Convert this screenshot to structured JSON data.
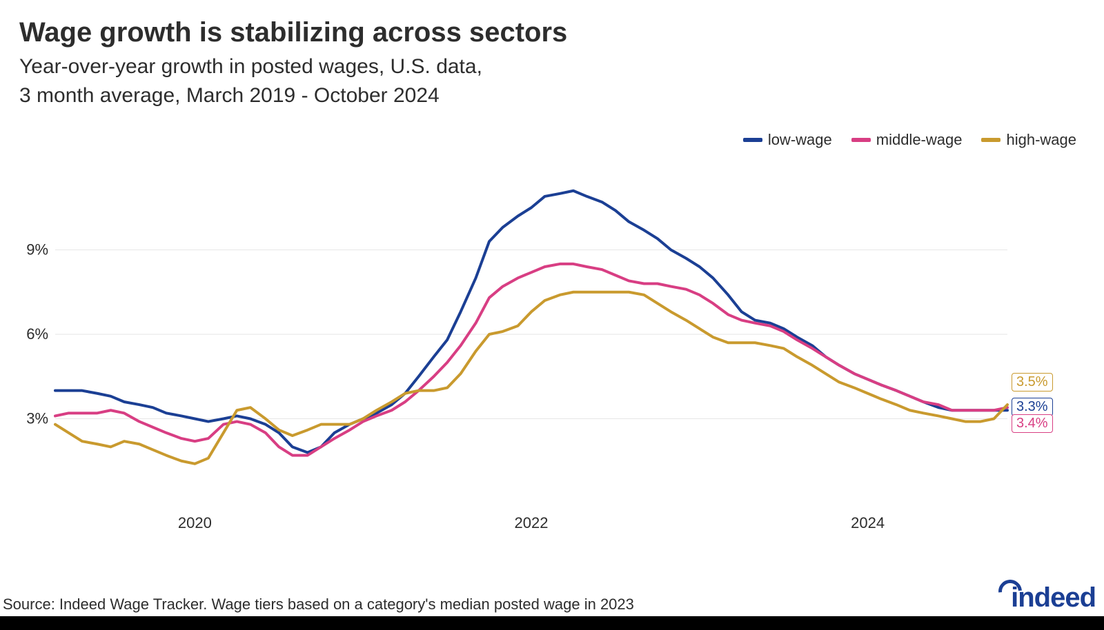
{
  "title": "Wage growth is stabilizing across sectors",
  "subtitle_line1": "Year-over-year growth in posted wages, U.S. data,",
  "subtitle_line2": "3 month average, March 2019 -  October 2024",
  "source": "Source: Indeed Wage Tracker. Wage tiers based on a category's median posted wage in 2023",
  "logo_text": "indeed",
  "chart": {
    "type": "line",
    "background_color": "#ffffff",
    "grid_color": "#e6e6e6",
    "text_color": "#2d2d2d",
    "line_width": 4,
    "x_start": 2019.17,
    "x_end": 2024.83,
    "xticks": [
      {
        "value": 2020,
        "label": "2020"
      },
      {
        "value": 2022,
        "label": "2022"
      },
      {
        "value": 2024,
        "label": "2024"
      }
    ],
    "ylim": [
      0,
      12
    ],
    "yticks": [
      {
        "value": 3,
        "label": "3%"
      },
      {
        "value": 6,
        "label": "6%"
      },
      {
        "value": 9,
        "label": "9%"
      }
    ],
    "tick_fontsize": 22,
    "title_fontsize": 40,
    "subtitle_fontsize": 30,
    "legend_fontsize": 22,
    "endlabel_fontsize": 20,
    "legend_position": "top-right",
    "series": [
      {
        "name": "low-wage",
        "color": "#1b3f94",
        "end_label": "3.3%",
        "x": [
          2019.17,
          2019.25,
          2019.33,
          2019.42,
          2019.5,
          2019.58,
          2019.67,
          2019.75,
          2019.83,
          2019.92,
          2020.0,
          2020.08,
          2020.17,
          2020.25,
          2020.33,
          2020.42,
          2020.5,
          2020.58,
          2020.67,
          2020.75,
          2020.83,
          2020.92,
          2021.0,
          2021.08,
          2021.17,
          2021.25,
          2021.33,
          2021.42,
          2021.5,
          2021.58,
          2021.67,
          2021.75,
          2021.83,
          2021.92,
          2022.0,
          2022.08,
          2022.17,
          2022.25,
          2022.33,
          2022.42,
          2022.5,
          2022.58,
          2022.67,
          2022.75,
          2022.83,
          2022.92,
          2023.0,
          2023.08,
          2023.17,
          2023.25,
          2023.33,
          2023.42,
          2023.5,
          2023.58,
          2023.67,
          2023.75,
          2023.83,
          2023.92,
          2024.0,
          2024.08,
          2024.17,
          2024.25,
          2024.33,
          2024.42,
          2024.5,
          2024.58,
          2024.67,
          2024.75,
          2024.83
        ],
        "y": [
          4.0,
          4.0,
          4.0,
          3.9,
          3.8,
          3.6,
          3.5,
          3.4,
          3.2,
          3.1,
          3.0,
          2.9,
          3.0,
          3.1,
          3.0,
          2.8,
          2.5,
          2.0,
          1.8,
          2.0,
          2.5,
          2.8,
          3.0,
          3.2,
          3.5,
          3.9,
          4.5,
          5.2,
          5.8,
          6.8,
          8.0,
          9.3,
          9.8,
          10.2,
          10.5,
          10.9,
          11.0,
          11.1,
          10.9,
          10.7,
          10.4,
          10.0,
          9.7,
          9.4,
          9.0,
          8.7,
          8.4,
          8.0,
          7.4,
          6.8,
          6.5,
          6.4,
          6.2,
          5.9,
          5.6,
          5.2,
          4.9,
          4.6,
          4.4,
          4.2,
          4.0,
          3.8,
          3.6,
          3.4,
          3.3,
          3.3,
          3.3,
          3.3,
          3.3
        ]
      },
      {
        "name": "middle-wage",
        "color": "#d83e83",
        "end_label": "3.4%",
        "x": [
          2019.17,
          2019.25,
          2019.33,
          2019.42,
          2019.5,
          2019.58,
          2019.67,
          2019.75,
          2019.83,
          2019.92,
          2020.0,
          2020.08,
          2020.17,
          2020.25,
          2020.33,
          2020.42,
          2020.5,
          2020.58,
          2020.67,
          2020.75,
          2020.83,
          2020.92,
          2021.0,
          2021.08,
          2021.17,
          2021.25,
          2021.33,
          2021.42,
          2021.5,
          2021.58,
          2021.67,
          2021.75,
          2021.83,
          2021.92,
          2022.0,
          2022.08,
          2022.17,
          2022.25,
          2022.33,
          2022.42,
          2022.5,
          2022.58,
          2022.67,
          2022.75,
          2022.83,
          2022.92,
          2023.0,
          2023.08,
          2023.17,
          2023.25,
          2023.33,
          2023.42,
          2023.5,
          2023.58,
          2023.67,
          2023.75,
          2023.83,
          2023.92,
          2024.0,
          2024.08,
          2024.17,
          2024.25,
          2024.33,
          2024.42,
          2024.5,
          2024.58,
          2024.67,
          2024.75,
          2024.83
        ],
        "y": [
          3.1,
          3.2,
          3.2,
          3.2,
          3.3,
          3.2,
          2.9,
          2.7,
          2.5,
          2.3,
          2.2,
          2.3,
          2.8,
          2.9,
          2.8,
          2.5,
          2.0,
          1.7,
          1.7,
          2.0,
          2.3,
          2.6,
          2.9,
          3.1,
          3.3,
          3.6,
          4.0,
          4.5,
          5.0,
          5.6,
          6.4,
          7.3,
          7.7,
          8.0,
          8.2,
          8.4,
          8.5,
          8.5,
          8.4,
          8.3,
          8.1,
          7.9,
          7.8,
          7.8,
          7.7,
          7.6,
          7.4,
          7.1,
          6.7,
          6.5,
          6.4,
          6.3,
          6.1,
          5.8,
          5.5,
          5.2,
          4.9,
          4.6,
          4.4,
          4.2,
          4.0,
          3.8,
          3.6,
          3.5,
          3.3,
          3.3,
          3.3,
          3.3,
          3.4
        ]
      },
      {
        "name": "high-wage",
        "color": "#c99a2e",
        "end_label": "3.5%",
        "x": [
          2019.17,
          2019.25,
          2019.33,
          2019.42,
          2019.5,
          2019.58,
          2019.67,
          2019.75,
          2019.83,
          2019.92,
          2020.0,
          2020.08,
          2020.17,
          2020.25,
          2020.33,
          2020.42,
          2020.5,
          2020.58,
          2020.67,
          2020.75,
          2020.83,
          2020.92,
          2021.0,
          2021.08,
          2021.17,
          2021.25,
          2021.33,
          2021.42,
          2021.5,
          2021.58,
          2021.67,
          2021.75,
          2021.83,
          2021.92,
          2022.0,
          2022.08,
          2022.17,
          2022.25,
          2022.33,
          2022.42,
          2022.5,
          2022.58,
          2022.67,
          2022.75,
          2022.83,
          2022.92,
          2023.0,
          2023.08,
          2023.17,
          2023.25,
          2023.33,
          2023.42,
          2023.5,
          2023.58,
          2023.67,
          2023.75,
          2023.83,
          2023.92,
          2024.0,
          2024.08,
          2024.17,
          2024.25,
          2024.33,
          2024.42,
          2024.5,
          2024.58,
          2024.67,
          2024.75,
          2024.83
        ],
        "y": [
          2.8,
          2.5,
          2.2,
          2.1,
          2.0,
          2.2,
          2.1,
          1.9,
          1.7,
          1.5,
          1.4,
          1.6,
          2.5,
          3.3,
          3.4,
          3.0,
          2.6,
          2.4,
          2.6,
          2.8,
          2.8,
          2.8,
          3.0,
          3.3,
          3.6,
          3.9,
          4.0,
          4.0,
          4.1,
          4.6,
          5.4,
          6.0,
          6.1,
          6.3,
          6.8,
          7.2,
          7.4,
          7.5,
          7.5,
          7.5,
          7.5,
          7.5,
          7.4,
          7.1,
          6.8,
          6.5,
          6.2,
          5.9,
          5.7,
          5.7,
          5.7,
          5.6,
          5.5,
          5.2,
          4.9,
          4.6,
          4.3,
          4.1,
          3.9,
          3.7,
          3.5,
          3.3,
          3.2,
          3.1,
          3.0,
          2.9,
          2.9,
          3.0,
          3.5
        ]
      }
    ]
  }
}
